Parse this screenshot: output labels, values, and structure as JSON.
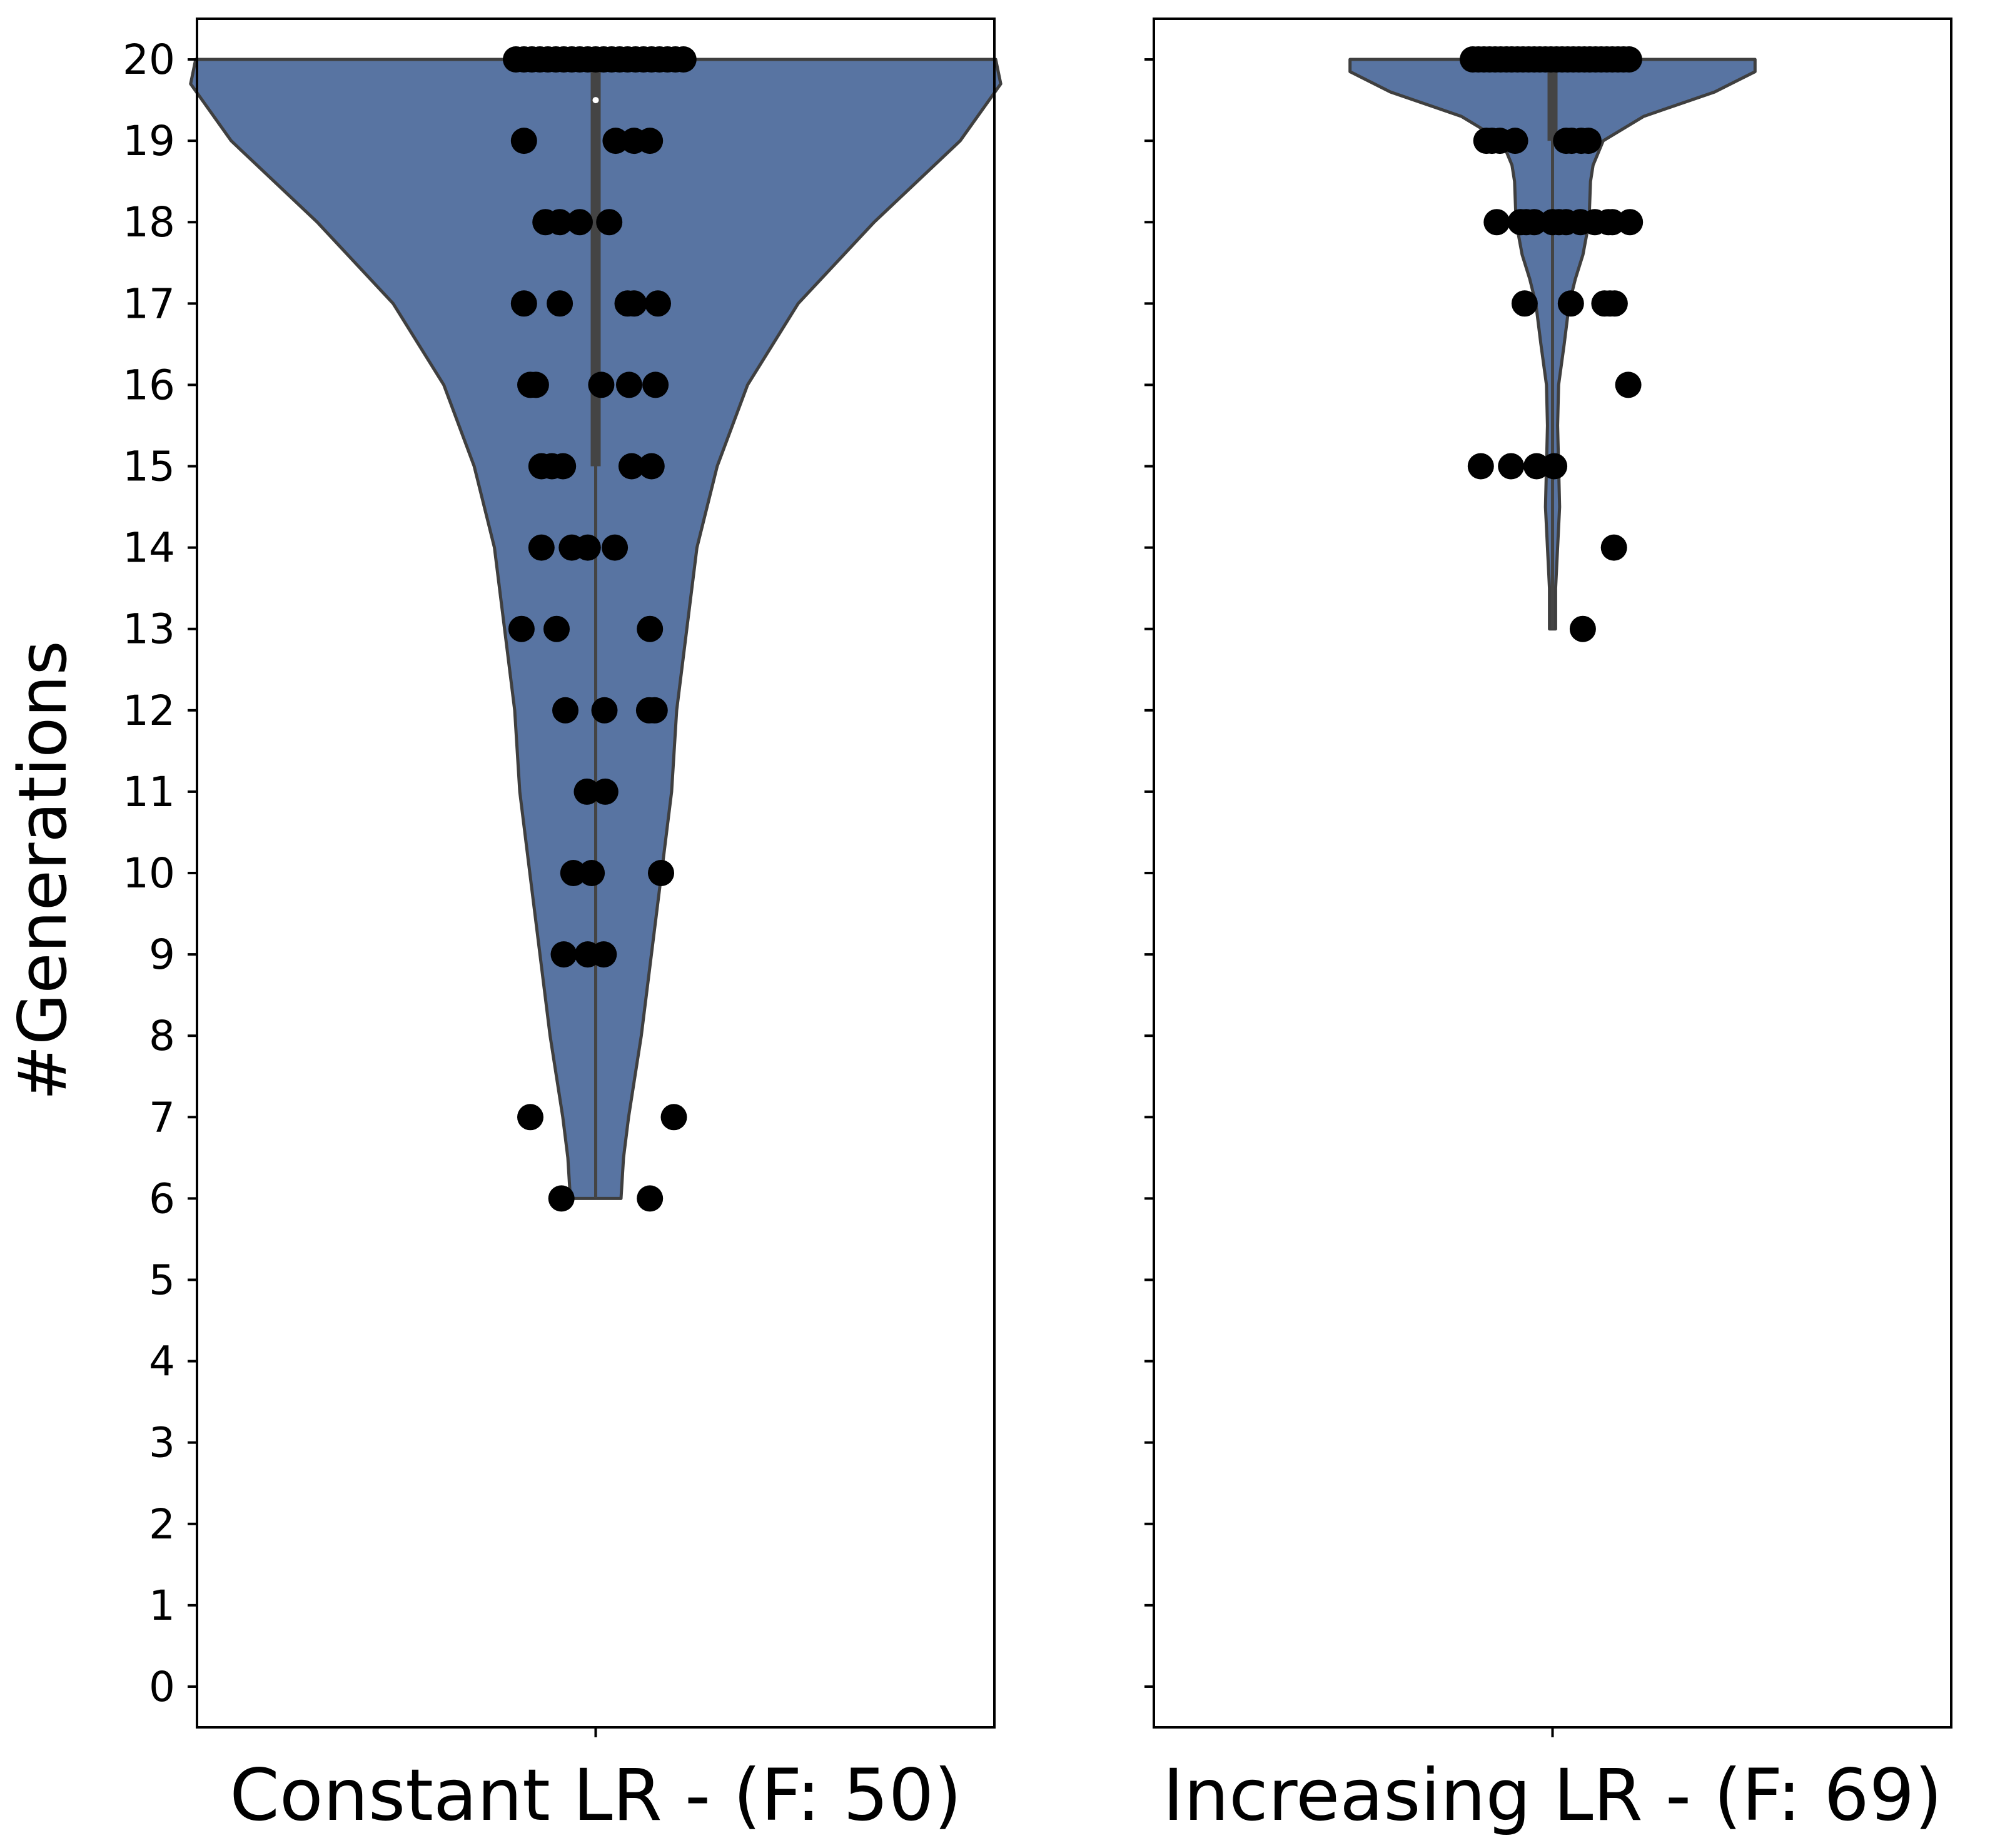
{
  "chart_data": {
    "type": "violin",
    "ylabel": "#Generations",
    "ylim": [
      -0.5,
      20.5
    ],
    "yticks": [
      0,
      1,
      2,
      3,
      4,
      5,
      6,
      7,
      8,
      9,
      10,
      11,
      12,
      13,
      14,
      15,
      16,
      17,
      18,
      19,
      20
    ],
    "shared_y": true,
    "grid": false,
    "colors": {
      "violin_fill": "#5874a2",
      "violin_edge": "#3f3f3f",
      "box": "#444444",
      "median": "#ffffff",
      "points": "#000000"
    },
    "panels": [
      {
        "category": "Constant LR - (F: 50)",
        "stats": {
          "min": 6,
          "q1": 15,
          "median": 19.5,
          "q3": 20,
          "max": 20
        },
        "density": [
          [
            20,
            0.79
          ],
          [
            19.7,
            0.8
          ],
          [
            19,
            0.72
          ],
          [
            18,
            0.55
          ],
          [
            17,
            0.4
          ],
          [
            16,
            0.3
          ],
          [
            15,
            0.24
          ],
          [
            14,
            0.2
          ],
          [
            13,
            0.18
          ],
          [
            12,
            0.16
          ],
          [
            11,
            0.15
          ],
          [
            10,
            0.13
          ],
          [
            9,
            0.11
          ],
          [
            8,
            0.09
          ],
          [
            7,
            0.065
          ],
          [
            6.5,
            0.055
          ],
          [
            6,
            0.05
          ]
        ],
        "points": [
          [
            20,
            -0.1
          ],
          [
            20,
            -0.09
          ],
          [
            20,
            -0.08
          ],
          [
            20,
            -0.07
          ],
          [
            20,
            -0.06
          ],
          [
            20,
            -0.05
          ],
          [
            20,
            -0.04
          ],
          [
            20,
            -0.03
          ],
          [
            20,
            -0.02
          ],
          [
            20,
            -0.01
          ],
          [
            20,
            0.0
          ],
          [
            20,
            0.01
          ],
          [
            20,
            0.02
          ],
          [
            20,
            0.03
          ],
          [
            20,
            0.04
          ],
          [
            20,
            0.05
          ],
          [
            20,
            0.06
          ],
          [
            20,
            0.07
          ],
          [
            20,
            0.08
          ],
          [
            20,
            0.09
          ],
          [
            20,
            0.1
          ],
          [
            20,
            0.11
          ],
          [
            19,
            -0.09
          ],
          [
            19,
            0.025
          ],
          [
            19,
            0.048
          ],
          [
            19,
            0.068
          ],
          [
            18,
            -0.063
          ],
          [
            18,
            -0.045
          ],
          [
            18,
            -0.02
          ],
          [
            18,
            0.017
          ],
          [
            17,
            -0.09
          ],
          [
            17,
            -0.045
          ],
          [
            17,
            0.04
          ],
          [
            17,
            0.048
          ],
          [
            17,
            0.078
          ],
          [
            16,
            -0.082
          ],
          [
            16,
            -0.075
          ],
          [
            16,
            0.007
          ],
          [
            16,
            0.042
          ],
          [
            16,
            0.075
          ],
          [
            15,
            -0.068
          ],
          [
            15,
            -0.055
          ],
          [
            15,
            -0.041
          ],
          [
            15,
            0.045
          ],
          [
            15,
            0.07
          ],
          [
            14,
            -0.068
          ],
          [
            14,
            -0.03
          ],
          [
            14,
            -0.01
          ],
          [
            14,
            0.024
          ],
          [
            13,
            -0.093
          ],
          [
            13,
            -0.049
          ],
          [
            13,
            0.068
          ],
          [
            12,
            -0.038
          ],
          [
            12,
            0.011
          ],
          [
            12,
            0.067
          ],
          [
            12,
            0.074
          ],
          [
            11,
            -0.011
          ],
          [
            11,
            0.012
          ],
          [
            10,
            -0.028
          ],
          [
            10,
            -0.005
          ],
          [
            10,
            0.082
          ],
          [
            9,
            -0.04
          ],
          [
            9,
            -0.01
          ],
          [
            9,
            0.01
          ],
          [
            7,
            -0.082
          ],
          [
            7,
            0.098
          ],
          [
            6,
            -0.043
          ],
          [
            6,
            0.068
          ]
        ]
      },
      {
        "category": "Increasing LR - (F: 69)",
        "stats": {
          "min": 13,
          "q1": 19,
          "median": 20,
          "q3": 20,
          "max": 20
        },
        "density": [
          [
            20,
            0.4
          ],
          [
            19.85,
            0.4
          ],
          [
            19.6,
            0.32
          ],
          [
            19.3,
            0.18
          ],
          [
            19,
            0.1
          ],
          [
            18.7,
            0.08
          ],
          [
            18.5,
            0.075
          ],
          [
            18,
            0.072
          ],
          [
            17.6,
            0.06
          ],
          [
            17.3,
            0.045
          ],
          [
            17,
            0.033
          ],
          [
            16.5,
            0.023
          ],
          [
            16,
            0.012
          ],
          [
            15.5,
            0.01
          ],
          [
            15,
            0.012
          ],
          [
            14.5,
            0.014
          ],
          [
            14,
            0.01
          ],
          [
            13.5,
            0.006
          ],
          [
            13,
            0.006
          ]
        ],
        "points": [
          [
            20,
            -0.1
          ],
          [
            20,
            -0.093
          ],
          [
            20,
            -0.086
          ],
          [
            20,
            -0.079
          ],
          [
            20,
            -0.072
          ],
          [
            20,
            -0.065
          ],
          [
            20,
            -0.058
          ],
          [
            20,
            -0.051
          ],
          [
            20,
            -0.044
          ],
          [
            20,
            -0.037
          ],
          [
            20,
            -0.03
          ],
          [
            20,
            -0.023
          ],
          [
            20,
            -0.016
          ],
          [
            20,
            -0.009
          ],
          [
            20,
            -0.002
          ],
          [
            20,
            0.005
          ],
          [
            20,
            0.012
          ],
          [
            20,
            0.019
          ],
          [
            20,
            0.026
          ],
          [
            20,
            0.033
          ],
          [
            20,
            0.04
          ],
          [
            20,
            0.047
          ],
          [
            20,
            0.054
          ],
          [
            20,
            0.061
          ],
          [
            20,
            0.068
          ],
          [
            20,
            0.075
          ],
          [
            20,
            0.082
          ],
          [
            20,
            0.089
          ],
          [
            20,
            0.096
          ],
          [
            19,
            -0.083
          ],
          [
            19,
            -0.076
          ],
          [
            19,
            -0.066
          ],
          [
            19,
            -0.047
          ],
          [
            19,
            0.017
          ],
          [
            19,
            0.024
          ],
          [
            19,
            0.036
          ],
          [
            19,
            0.045
          ],
          [
            18,
            -0.07
          ],
          [
            18,
            -0.04
          ],
          [
            18,
            -0.033
          ],
          [
            18,
            -0.023
          ],
          [
            18,
            0.0
          ],
          [
            18,
            0.008
          ],
          [
            18,
            0.017
          ],
          [
            18,
            0.035
          ],
          [
            18,
            0.053
          ],
          [
            18,
            0.07
          ],
          [
            18,
            0.075
          ],
          [
            18,
            0.097
          ],
          [
            17,
            -0.035
          ],
          [
            17,
            0.023
          ],
          [
            17,
            0.065
          ],
          [
            17,
            0.072
          ],
          [
            17,
            0.078
          ],
          [
            16,
            0.095
          ],
          [
            15,
            -0.09
          ],
          [
            15,
            -0.052
          ],
          [
            15,
            -0.02
          ],
          [
            15,
            0.002
          ],
          [
            14,
            0.077
          ],
          [
            13,
            0.038
          ]
        ]
      }
    ]
  }
}
